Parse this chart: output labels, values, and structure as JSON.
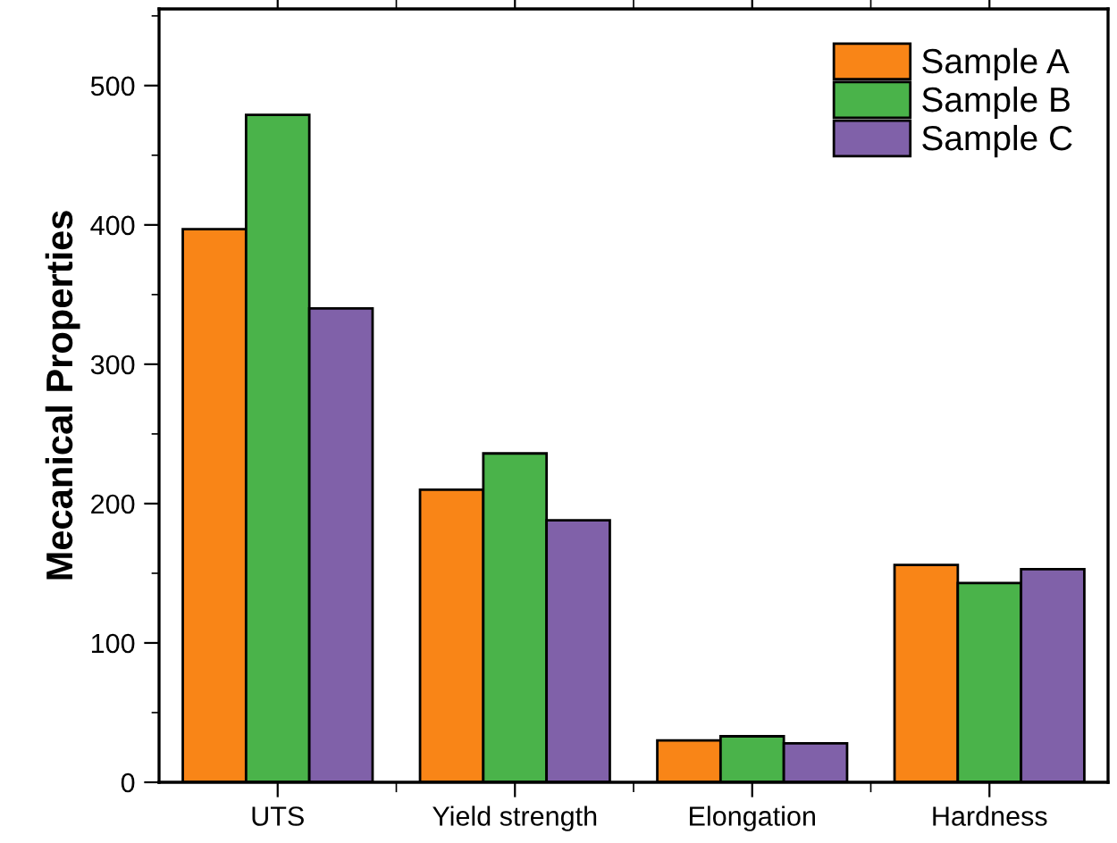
{
  "chart_data": {
    "type": "bar",
    "ylabel": "Mecanical Properties",
    "categories": [
      "UTS",
      "Yield strength",
      "Elongation",
      "Hardness"
    ],
    "series": [
      {
        "name": "Sample A",
        "color": "#f98517",
        "values": [
          397,
          210,
          30,
          156
        ]
      },
      {
        "name": "Sample B",
        "color": "#4ab34a",
        "values": [
          479,
          236,
          33,
          143
        ]
      },
      {
        "name": "Sample C",
        "color": "#8061a9",
        "values": [
          340,
          188,
          28,
          153
        ]
      }
    ],
    "ylim": [
      0,
      555
    ],
    "yticks": [
      0,
      100,
      200,
      300,
      400,
      500
    ],
    "grid": false,
    "legend": "top right"
  }
}
